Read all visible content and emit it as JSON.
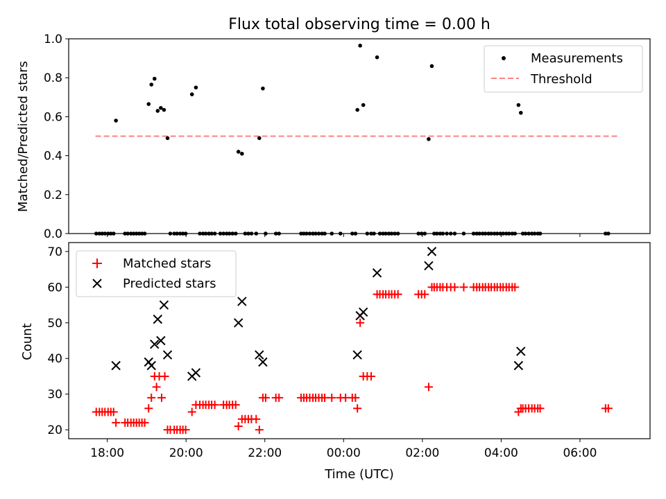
{
  "chart_data": [
    {
      "type": "scatter",
      "title": "Flux total observing time = 0.00 h",
      "ylabel": "Matched/Predicted stars",
      "xlim": [
        17.02,
        31.78
      ],
      "ylim": [
        0.0,
        1.0
      ],
      "yticks": [
        0.0,
        0.2,
        0.4,
        0.6,
        0.8,
        1.0
      ],
      "ytick_labels": [
        "0.0",
        "0.2",
        "0.4",
        "0.6",
        "0.8",
        "1.0"
      ],
      "legend_position": "upper right",
      "legend": [
        "Measurements",
        "Threshold"
      ],
      "threshold": {
        "name": "Threshold",
        "value": 0.5,
        "x_range": [
          17.7,
          31.0
        ],
        "color": "#ff7f7f",
        "style": "dashed"
      },
      "series": [
        {
          "name": "Measurements",
          "color": "#000000",
          "points": [
            [
              17.72,
              0
            ],
            [
              17.8,
              0
            ],
            [
              17.87,
              0
            ],
            [
              17.94,
              0
            ],
            [
              18.02,
              0
            ],
            [
              18.09,
              0
            ],
            [
              18.16,
              0
            ],
            [
              18.22,
              0.58
            ],
            [
              18.45,
              0
            ],
            [
              18.52,
              0
            ],
            [
              18.6,
              0
            ],
            [
              18.67,
              0
            ],
            [
              18.74,
              0
            ],
            [
              18.81,
              0
            ],
            [
              18.88,
              0
            ],
            [
              18.95,
              0
            ],
            [
              19.05,
              0.665
            ],
            [
              19.12,
              0.765
            ],
            [
              19.2,
              0.795
            ],
            [
              19.28,
              0.63
            ],
            [
              19.36,
              0.645
            ],
            [
              19.44,
              0.635
            ],
            [
              19.53,
              0.49
            ],
            [
              19.6,
              0
            ],
            [
              19.7,
              0
            ],
            [
              19.77,
              0
            ],
            [
              19.85,
              0
            ],
            [
              19.92,
              0
            ],
            [
              19.99,
              0
            ],
            [
              20.15,
              0.715
            ],
            [
              20.25,
              0.75
            ],
            [
              20.35,
              0
            ],
            [
              20.43,
              0
            ],
            [
              20.5,
              0
            ],
            [
              20.58,
              0
            ],
            [
              20.65,
              0
            ],
            [
              20.73,
              0
            ],
            [
              20.87,
              0
            ],
            [
              20.95,
              0
            ],
            [
              21.03,
              0
            ],
            [
              21.1,
              0
            ],
            [
              21.18,
              0
            ],
            [
              21.26,
              0
            ],
            [
              21.33,
              0.42
            ],
            [
              21.42,
              0.41
            ],
            [
              21.5,
              0
            ],
            [
              21.58,
              0
            ],
            [
              21.66,
              0
            ],
            [
              21.78,
              0
            ],
            [
              21.86,
              0.49
            ],
            [
              21.95,
              0.745
            ],
            [
              22.02,
              0
            ],
            [
              22.28,
              0
            ],
            [
              22.36,
              0
            ],
            [
              22.92,
              0
            ],
            [
              22.99,
              0
            ],
            [
              23.06,
              0
            ],
            [
              23.14,
              0
            ],
            [
              23.22,
              0
            ],
            [
              23.29,
              0
            ],
            [
              23.37,
              0
            ],
            [
              23.45,
              0
            ],
            [
              23.52,
              0
            ],
            [
              23.7,
              0
            ],
            [
              23.92,
              0
            ],
            [
              24.22,
              0
            ],
            [
              24.3,
              0
            ],
            [
              24.35,
              0.635
            ],
            [
              24.42,
              0.965
            ],
            [
              24.5,
              0.66
            ],
            [
              24.6,
              0
            ],
            [
              24.7,
              0
            ],
            [
              24.77,
              0
            ],
            [
              24.85,
              0.905
            ],
            [
              24.92,
              0
            ],
            [
              25.0,
              0
            ],
            [
              25.07,
              0
            ],
            [
              25.15,
              0
            ],
            [
              25.22,
              0
            ],
            [
              25.3,
              0
            ],
            [
              25.38,
              0
            ],
            [
              25.9,
              0
            ],
            [
              25.98,
              0
            ],
            [
              26.06,
              0
            ],
            [
              26.16,
              0.485
            ],
            [
              26.24,
              0.86
            ],
            [
              26.3,
              0
            ],
            [
              26.37,
              0
            ],
            [
              26.45,
              0
            ],
            [
              26.52,
              0
            ],
            [
              26.62,
              0
            ],
            [
              26.72,
              0
            ],
            [
              26.82,
              0
            ],
            [
              27.05,
              0
            ],
            [
              27.3,
              0
            ],
            [
              27.38,
              0
            ],
            [
              27.45,
              0
            ],
            [
              27.53,
              0
            ],
            [
              27.6,
              0
            ],
            [
              27.68,
              0
            ],
            [
              27.75,
              0
            ],
            [
              27.83,
              0
            ],
            [
              27.9,
              0
            ],
            [
              27.98,
              0
            ],
            [
              28.05,
              0
            ],
            [
              28.13,
              0
            ],
            [
              28.2,
              0
            ],
            [
              28.28,
              0
            ],
            [
              28.35,
              0
            ],
            [
              28.44,
              0.66
            ],
            [
              28.5,
              0.62
            ],
            [
              28.55,
              0
            ],
            [
              28.62,
              0
            ],
            [
              28.7,
              0
            ],
            [
              28.78,
              0
            ],
            [
              28.85,
              0
            ],
            [
              28.93,
              0
            ],
            [
              28.99,
              0
            ],
            [
              30.65,
              0
            ],
            [
              30.72,
              0
            ]
          ]
        }
      ]
    },
    {
      "type": "scatter",
      "xlabel": "Time (UTC)",
      "ylabel": "Count",
      "xlim": [
        17.02,
        31.78
      ],
      "ylim": [
        17.5,
        72.5
      ],
      "yticks": [
        20,
        30,
        40,
        50,
        60,
        70
      ],
      "ytick_labels": [
        "20",
        "30",
        "40",
        "50",
        "60",
        "70"
      ],
      "xticks": [
        18,
        20,
        22,
        24,
        26,
        28,
        30
      ],
      "xtick_labels": [
        "18:00",
        "20:00",
        "22:00",
        "00:00",
        "02:00",
        "04:00",
        "06:00"
      ],
      "legend_position": "upper left",
      "legend": [
        "Matched stars",
        "Predicted stars"
      ],
      "series": [
        {
          "name": "Matched stars",
          "color": "#ff0000",
          "marker": "plus",
          "points": [
            [
              17.72,
              25
            ],
            [
              17.8,
              25
            ],
            [
              17.87,
              25
            ],
            [
              17.94,
              25
            ],
            [
              18.02,
              25
            ],
            [
              18.09,
              25
            ],
            [
              18.16,
              25
            ],
            [
              18.22,
              22
            ],
            [
              18.45,
              22
            ],
            [
              18.52,
              22
            ],
            [
              18.6,
              22
            ],
            [
              18.67,
              22
            ],
            [
              18.74,
              22
            ],
            [
              18.81,
              22
            ],
            [
              18.88,
              22
            ],
            [
              18.95,
              22
            ],
            [
              19.05,
              26
            ],
            [
              19.12,
              29
            ],
            [
              19.2,
              35
            ],
            [
              19.25,
              32
            ],
            [
              19.32,
              35
            ],
            [
              19.38,
              29
            ],
            [
              19.46,
              35
            ],
            [
              19.53,
              20
            ],
            [
              19.6,
              20
            ],
            [
              19.7,
              20
            ],
            [
              19.77,
              20
            ],
            [
              19.85,
              20
            ],
            [
              19.92,
              20
            ],
            [
              19.99,
              20
            ],
            [
              20.15,
              25
            ],
            [
              20.25,
              27
            ],
            [
              20.35,
              27
            ],
            [
              20.43,
              27
            ],
            [
              20.5,
              27
            ],
            [
              20.58,
              27
            ],
            [
              20.65,
              27
            ],
            [
              20.73,
              27
            ],
            [
              20.95,
              27
            ],
            [
              21.03,
              27
            ],
            [
              21.1,
              27
            ],
            [
              21.18,
              27
            ],
            [
              21.26,
              27
            ],
            [
              21.33,
              21
            ],
            [
              21.42,
              23
            ],
            [
              21.5,
              23
            ],
            [
              21.58,
              23
            ],
            [
              21.66,
              23
            ],
            [
              21.78,
              23
            ],
            [
              21.86,
              20
            ],
            [
              21.95,
              29
            ],
            [
              22.02,
              29
            ],
            [
              22.28,
              29
            ],
            [
              22.36,
              29
            ],
            [
              22.92,
              29
            ],
            [
              22.99,
              29
            ],
            [
              23.06,
              29
            ],
            [
              23.14,
              29
            ],
            [
              23.22,
              29
            ],
            [
              23.29,
              29
            ],
            [
              23.37,
              29
            ],
            [
              23.45,
              29
            ],
            [
              23.52,
              29
            ],
            [
              23.7,
              29
            ],
            [
              23.92,
              29
            ],
            [
              24.05,
              29
            ],
            [
              24.22,
              29
            ],
            [
              24.3,
              29
            ],
            [
              24.35,
              26
            ],
            [
              24.42,
              50
            ],
            [
              24.5,
              35
            ],
            [
              24.6,
              35
            ],
            [
              24.7,
              35
            ],
            [
              24.85,
              58
            ],
            [
              24.92,
              58
            ],
            [
              25.0,
              58
            ],
            [
              25.07,
              58
            ],
            [
              25.15,
              58
            ],
            [
              25.22,
              58
            ],
            [
              25.3,
              58
            ],
            [
              25.38,
              58
            ],
            [
              25.9,
              58
            ],
            [
              25.98,
              58
            ],
            [
              26.06,
              58
            ],
            [
              26.16,
              32
            ],
            [
              26.24,
              60
            ],
            [
              26.3,
              60
            ],
            [
              26.37,
              60
            ],
            [
              26.45,
              60
            ],
            [
              26.52,
              60
            ],
            [
              26.62,
              60
            ],
            [
              26.72,
              60
            ],
            [
              26.82,
              60
            ],
            [
              27.05,
              60
            ],
            [
              27.3,
              60
            ],
            [
              27.38,
              60
            ],
            [
              27.45,
              60
            ],
            [
              27.53,
              60
            ],
            [
              27.6,
              60
            ],
            [
              27.68,
              60
            ],
            [
              27.75,
              60
            ],
            [
              27.83,
              60
            ],
            [
              27.9,
              60
            ],
            [
              27.98,
              60
            ],
            [
              28.05,
              60
            ],
            [
              28.13,
              60
            ],
            [
              28.2,
              60
            ],
            [
              28.28,
              60
            ],
            [
              28.35,
              60
            ],
            [
              28.44,
              25
            ],
            [
              28.5,
              26
            ],
            [
              28.55,
              26
            ],
            [
              28.62,
              26
            ],
            [
              28.7,
              26
            ],
            [
              28.78,
              26
            ],
            [
              28.85,
              26
            ],
            [
              28.93,
              26
            ],
            [
              28.99,
              26
            ],
            [
              30.65,
              26
            ],
            [
              30.72,
              26
            ]
          ]
        },
        {
          "name": "Predicted stars",
          "color": "#000000",
          "marker": "x",
          "points": [
            [
              18.22,
              38
            ],
            [
              19.05,
              39
            ],
            [
              19.12,
              38
            ],
            [
              19.2,
              44
            ],
            [
              19.28,
              51
            ],
            [
              19.36,
              45
            ],
            [
              19.44,
              55
            ],
            [
              19.53,
              41
            ],
            [
              20.15,
              35
            ],
            [
              20.25,
              36
            ],
            [
              21.33,
              50
            ],
            [
              21.42,
              56
            ],
            [
              21.86,
              41
            ],
            [
              21.95,
              39
            ],
            [
              24.35,
              41
            ],
            [
              24.42,
              52
            ],
            [
              24.5,
              53
            ],
            [
              24.85,
              64
            ],
            [
              26.16,
              66
            ],
            [
              26.24,
              70
            ],
            [
              28.44,
              38
            ],
            [
              28.5,
              42
            ]
          ]
        }
      ]
    }
  ]
}
